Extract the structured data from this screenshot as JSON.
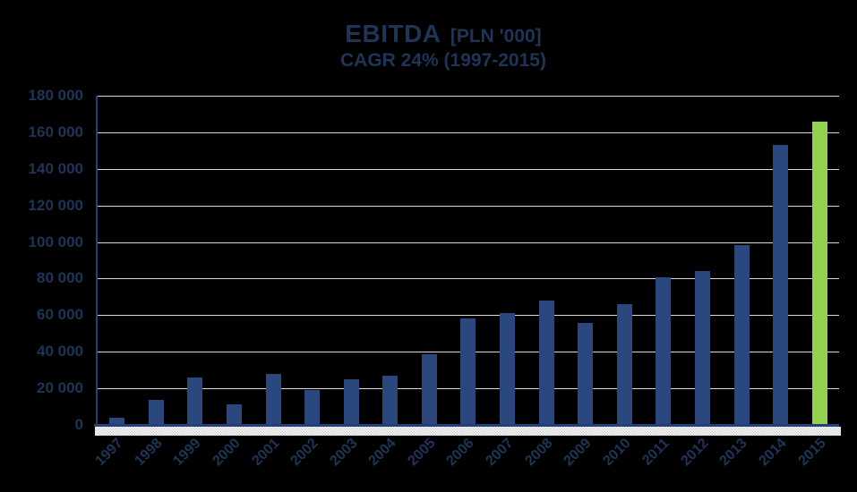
{
  "title": {
    "main": "EBITDA",
    "unit": "[PLN '000]",
    "subtitle": "CAGR 24% (1997-2015)"
  },
  "chart_data": {
    "type": "bar",
    "title": "EBITDA [PLN '000]",
    "subtitle": "CAGR 24% (1997-2015)",
    "categories": [
      "1997",
      "1998",
      "1999",
      "2000",
      "2001",
      "2002",
      "2003",
      "2004",
      "2005",
      "2006",
      "2007",
      "2008",
      "2009",
      "2010",
      "2011",
      "2012",
      "2013",
      "2014",
      "2015"
    ],
    "values": [
      4000,
      13500,
      26000,
      11500,
      28000,
      19000,
      25000,
      27000,
      38500,
      58000,
      61000,
      68000,
      56000,
      66000,
      80500,
      84000,
      98500,
      153000,
      166000
    ],
    "ylim": [
      0,
      180000
    ],
    "ytick_step": 20000,
    "ytick_labels": [
      "0",
      "20 000",
      "40 000",
      "60 000",
      "80 000",
      "100 000",
      "120 000",
      "140 000",
      "160 000",
      "180 000"
    ],
    "grid": true,
    "legend": "none",
    "bar_color": "#2A477E",
    "highlight_color": "#92D050",
    "highlight_index": 18,
    "background": "#000000",
    "text_color": "#1F3456",
    "gridline_color": "#D9D9D9",
    "axis_color": "#24407A"
  }
}
